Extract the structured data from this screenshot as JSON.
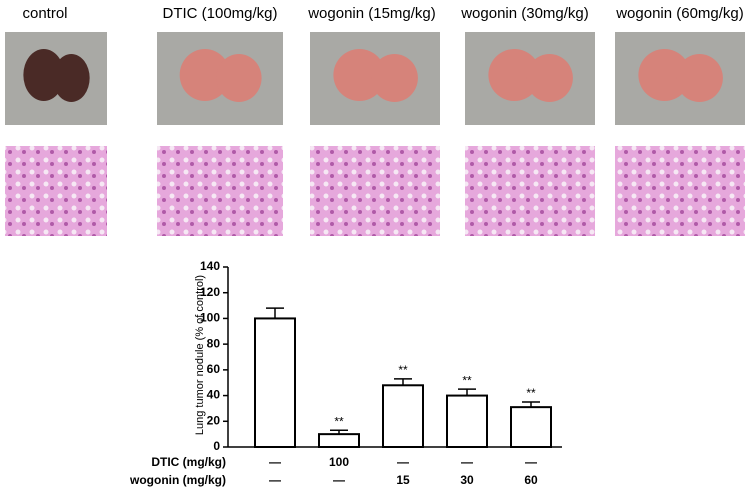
{
  "panels": [
    "control",
    "DTIC (100mg/kg)",
    "wogonin (15mg/kg)",
    "wogonin (30mg/kg)",
    "wogonin (60mg/kg)"
  ],
  "chart_data": {
    "type": "bar",
    "ylabel": "Lung tumor nodule (% of control)",
    "values": [
      100,
      10,
      48,
      40,
      31
    ],
    "errors": [
      8,
      3,
      5,
      5,
      4
    ],
    "significance": [
      null,
      "**",
      "**",
      "**",
      "**"
    ],
    "color": "#ffffff",
    "ylim": [
      0,
      140
    ],
    "yticks": [
      0,
      20,
      40,
      60,
      80,
      100,
      120,
      140
    ],
    "treatment_rows": [
      {
        "label": "DTIC (mg/kg)",
        "cells": [
          "—",
          "100",
          "—",
          "—",
          "—"
        ]
      },
      {
        "label": "wogonin (mg/kg)",
        "cells": [
          "—",
          "—",
          "15",
          "30",
          "60"
        ]
      }
    ]
  }
}
